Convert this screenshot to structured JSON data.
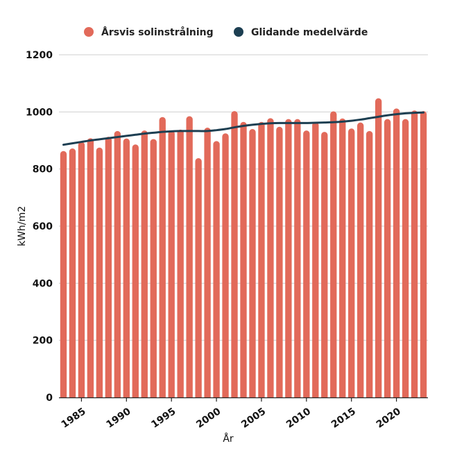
{
  "chart_data": {
    "type": "bar",
    "xlabel": "År",
    "ylabel": "kWh/m2",
    "ylim": [
      0,
      1200
    ],
    "yticks": [
      0,
      200,
      400,
      600,
      800,
      1000,
      1200
    ],
    "xticks": [
      1985,
      1990,
      1995,
      2000,
      2005,
      2010,
      2015,
      2020
    ],
    "grid": true,
    "legend_position": "top",
    "x": [
      1983,
      1984,
      1985,
      1986,
      1987,
      1988,
      1989,
      1990,
      1991,
      1992,
      1993,
      1994,
      1995,
      1996,
      1997,
      1998,
      1999,
      2000,
      2001,
      2002,
      2003,
      2004,
      2005,
      2006,
      2007,
      2008,
      2009,
      2010,
      2011,
      2012,
      2013,
      2014,
      2015,
      2016,
      2017,
      2018,
      2019,
      2020,
      2021,
      2022,
      2023
    ],
    "series": [
      {
        "name": "Årsvis solinstrålning",
        "kind": "bar",
        "color": "#e26a5a",
        "values": [
          863,
          872,
          895,
          908,
          875,
          913,
          933,
          907,
          886,
          935,
          905,
          982,
          935,
          938,
          985,
          838,
          945,
          898,
          925,
          1003,
          965,
          940,
          965,
          978,
          948,
          975,
          975,
          935,
          965,
          930,
          1002,
          977,
          942,
          963,
          933,
          1048,
          975,
          1012,
          975,
          1005,
          1003
        ]
      },
      {
        "name": "Glidande medelvärde",
        "kind": "line",
        "color": "#1d3f52",
        "values": [
          885,
          890,
          895,
          900,
          904,
          908,
          912,
          916,
          920,
          924,
          927,
          930,
          932,
          933,
          933,
          933,
          933,
          936,
          940,
          946,
          951,
          955,
          958,
          960,
          961,
          961,
          961,
          961,
          962,
          963,
          964,
          966,
          969,
          973,
          978,
          983,
          988,
          992,
          995,
          997,
          998
        ]
      }
    ]
  }
}
